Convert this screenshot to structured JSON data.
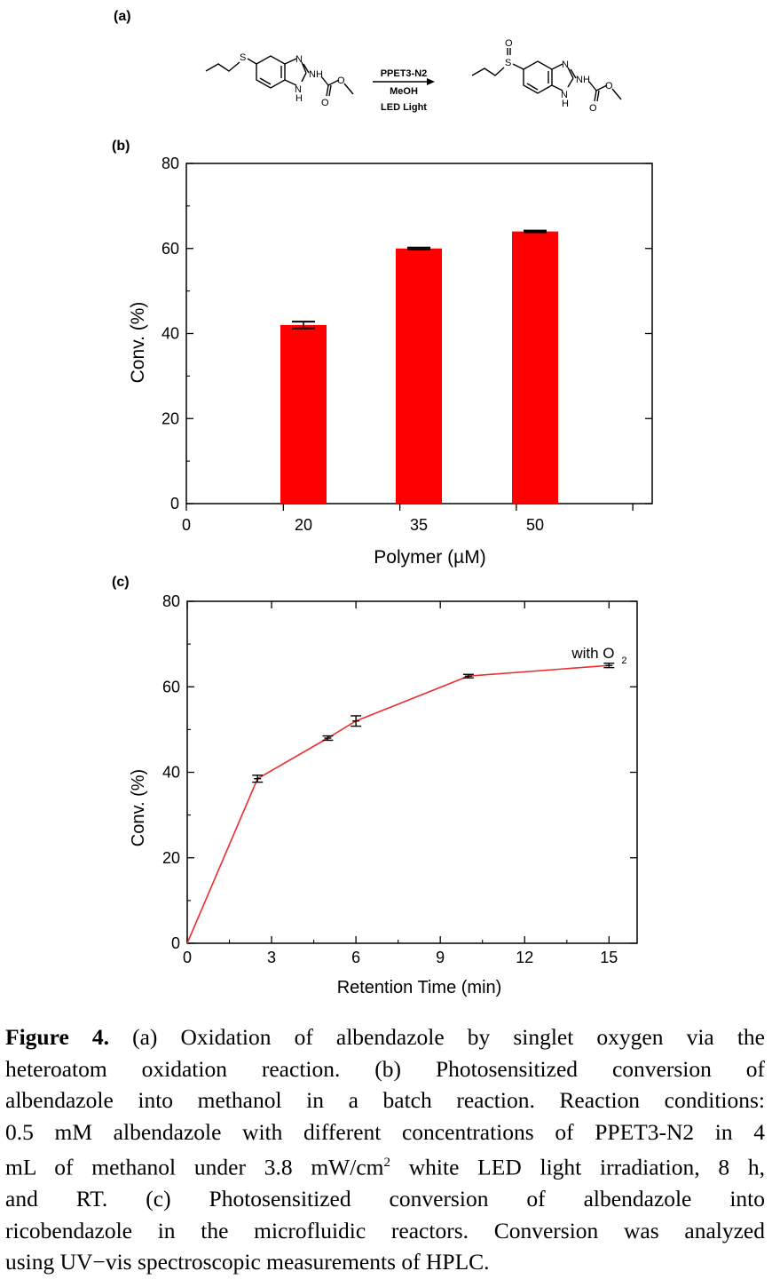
{
  "panel_labels": {
    "a": "(a)",
    "b": "(b)",
    "c": "(c)"
  },
  "scheme": {
    "reagent": "PPET3-N2",
    "solvent": "MeOH",
    "light": "LED Light",
    "atoms": {
      "S": "S",
      "N": "N",
      "NH": "NH",
      "H": "H",
      "O": "O"
    }
  },
  "chart_data": [
    {
      "type": "bar",
      "panel": "(b)",
      "categories": [
        "20",
        "35",
        "50"
      ],
      "x": [
        20,
        35,
        50
      ],
      "values": [
        42,
        60,
        64
      ],
      "errors": [
        0.8,
        0.2,
        0.2
      ],
      "color": "#ff0000",
      "xlabel": "Polymer (µM)",
      "ylabel": "Conv. (%)",
      "xlim": [
        0,
        60
      ],
      "ylim": [
        0,
        80
      ],
      "xticks": [
        "0",
        "20",
        "35",
        "50"
      ],
      "yticks": [
        "0",
        "20",
        "40",
        "60",
        "80"
      ],
      "grid": false
    },
    {
      "type": "line",
      "panel": "(c)",
      "x": [
        0,
        2.5,
        5,
        6,
        10,
        15
      ],
      "y": [
        0,
        38.5,
        48,
        52,
        62.5,
        65
      ],
      "errors": [
        0,
        0.6,
        0.3,
        1.0,
        0.2,
        0.3
      ],
      "line_color": "#e83030",
      "xlabel": "Retention Time (min)",
      "ylabel": "Conv. (%)",
      "xlim": [
        0,
        16
      ],
      "ylim": [
        0,
        80
      ],
      "xticks": [
        "0",
        "3",
        "6",
        "9",
        "12",
        "15"
      ],
      "yticks": [
        "0",
        "20",
        "40",
        "60",
        "80"
      ],
      "annotation": {
        "text": "with O",
        "subscript": "2",
        "x": 15,
        "y": 65
      },
      "grid": false
    }
  ],
  "caption": {
    "figure_label": "Figure 4.",
    "lines": [
      " (a) Oxidation of albendazole by singlet oxygen via the",
      "heteroatom oxidation reaction. (b) Photosensitized conversion of",
      "albendazole into methanol in a batch reaction. Reaction conditions:",
      "0.5 mM albendazole with different concentrations of PPET3-N2 in 4",
      "mL of methanol under 3.8 mW/cm",
      " white LED light irradiation, 8 h,",
      "and RT. (c) Photosensitized conversion of albendazole into",
      "ricobendazole in the microfluidic reactors. Conversion was analyzed",
      "using UV−vis spectroscopic measurements of HPLC."
    ],
    "superscript": "2"
  }
}
